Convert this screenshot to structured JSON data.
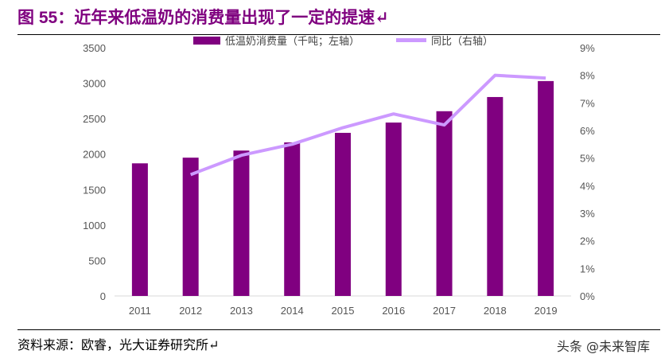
{
  "title": {
    "label": "图 55：",
    "text": "近年来低温奶的消费量出现了一定的提速↵"
  },
  "source": "资料来源：欧睿，光大证券研究所↵",
  "watermark": "头条 @未来智库",
  "chart_data": {
    "type": "bar+line",
    "categories": [
      "2011",
      "2012",
      "2013",
      "2014",
      "2015",
      "2016",
      "2017",
      "2018",
      "2019"
    ],
    "series": [
      {
        "name": "低温奶消费量（千吨；左轴）",
        "type": "bar",
        "axis": "left",
        "color": "#800080",
        "values": [
          1870,
          1950,
          2050,
          2165,
          2300,
          2445,
          2605,
          2805,
          3030
        ]
      },
      {
        "name": "同比（右轴）",
        "type": "line",
        "axis": "right",
        "color": "#cc99ff",
        "values": [
          null,
          4.4,
          5.1,
          5.5,
          6.1,
          6.6,
          6.2,
          8.0,
          7.9
        ]
      }
    ],
    "y_left": {
      "range": [
        0,
        3500
      ],
      "ticks": [
        "0",
        "500",
        "1000",
        "1500",
        "2000",
        "2500",
        "3000",
        "3500"
      ]
    },
    "y_right": {
      "range": [
        0,
        9
      ],
      "ticks": [
        "0%",
        "1%",
        "2%",
        "3%",
        "4%",
        "5%",
        "6%",
        "7%",
        "8%",
        "9%"
      ]
    },
    "legend": "top",
    "grid": false
  }
}
